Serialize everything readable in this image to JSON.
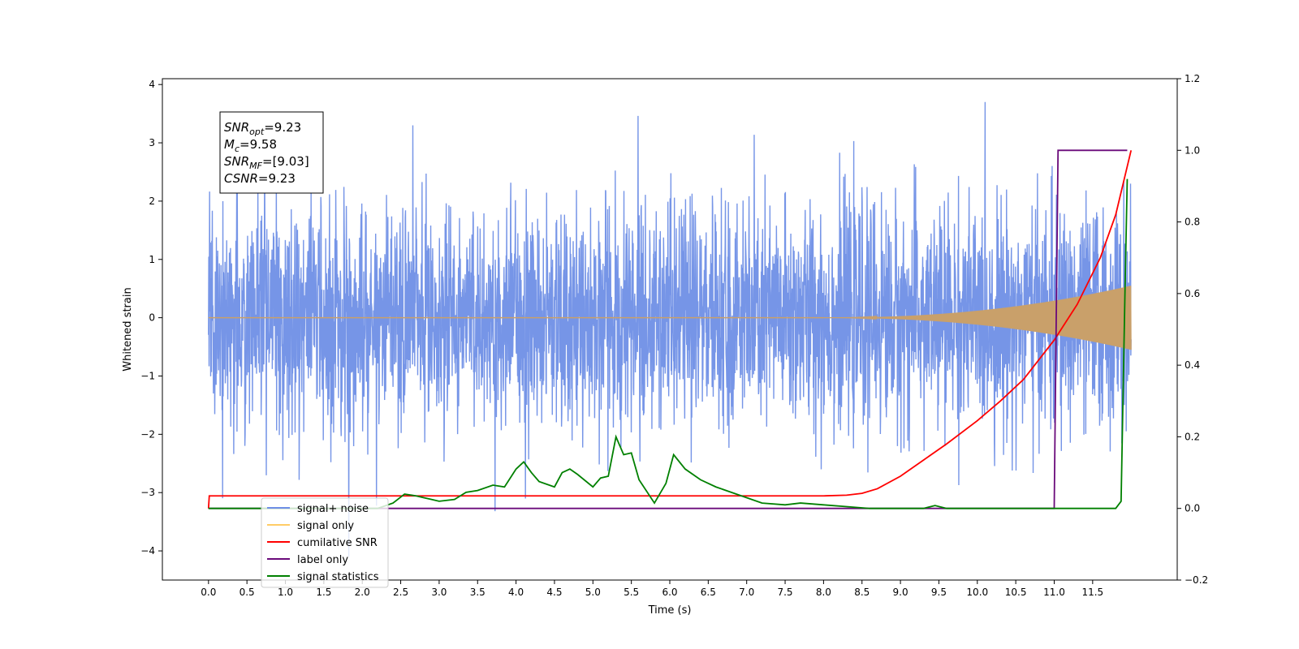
{
  "chart_data": {
    "type": "line",
    "xlabel": "Time (s)",
    "ylabel": "Whitened strain",
    "xlim": [
      -0.6,
      12.6
    ],
    "ylim": [
      -4.5,
      4.1
    ],
    "ylim_right": [
      -0.2,
      1.2
    ],
    "x_ticks": [
      "0.0",
      "0.5",
      "1.0",
      "1.5",
      "2.0",
      "2.5",
      "3.0",
      "3.5",
      "4.0",
      "4.5",
      "5.0",
      "5.5",
      "6.0",
      "6.5",
      "7.0",
      "7.5",
      "8.0",
      "8.5",
      "9.0",
      "9.5",
      "10.0",
      "10.5",
      "11.0",
      "11.5"
    ],
    "y_ticks": [
      "4",
      "3",
      "2",
      "1",
      "0",
      "−1",
      "−2",
      "−3",
      "−4"
    ],
    "y_ticks_right": [
      "1.2",
      "1.0",
      "0.8",
      "0.6",
      "0.4",
      "0.2",
      "0.0",
      "−0.2"
    ],
    "grid": false,
    "legend_position": "lower-left",
    "annotation": {
      "lines": [
        {
          "sym": "SNR",
          "sub": "opt",
          "val": "=9.23"
        },
        {
          "sym": "M",
          "sub": "c",
          "val": "=9.58"
        },
        {
          "sym": "SNR",
          "sub": "MF",
          "val": "=[9.03]"
        },
        {
          "sym": "CSNR",
          "sub": "",
          "val": "=9.23"
        }
      ]
    },
    "series": [
      {
        "name": "signal+ noise",
        "color": "#6f8fe6",
        "axis": "left",
        "kind": "noise",
        "sigma": 0.95,
        "t_start": 0.0,
        "t_end": 12.0
      },
      {
        "name": "signal only",
        "color": "#c9a06a",
        "legend_color": "#ffcc66",
        "axis": "left",
        "kind": "chirp",
        "t_start": 0.0,
        "t_end": 12.0,
        "peak_amplitude": 0.55
      },
      {
        "name": "cumilative SNR",
        "color": "#ff0000",
        "axis": "right",
        "x": [
          0.0,
          0.01,
          8.0,
          8.3,
          8.5,
          8.7,
          9.0,
          9.3,
          9.6,
          10.0,
          10.3,
          10.6,
          11.0,
          11.3,
          11.6,
          11.8,
          12.0
        ],
        "y": [
          0.0,
          0.035,
          0.035,
          0.037,
          0.042,
          0.055,
          0.09,
          0.135,
          0.18,
          0.245,
          0.3,
          0.36,
          0.47,
          0.57,
          0.7,
          0.82,
          1.0
        ]
      },
      {
        "name": "label only",
        "color": "#6a0a7a",
        "axis": "right",
        "x": [
          0.0,
          11.0,
          11.05,
          11.95
        ],
        "y": [
          0.0,
          0.0,
          1.0,
          1.0
        ]
      },
      {
        "name": "signal statistics",
        "color": "#008000",
        "axis": "right",
        "x": [
          0.0,
          2.2,
          2.4,
          2.55,
          2.7,
          2.8,
          2.9,
          3.0,
          3.2,
          3.35,
          3.5,
          3.7,
          3.85,
          4.0,
          4.1,
          4.2,
          4.3,
          4.5,
          4.6,
          4.7,
          4.8,
          5.0,
          5.1,
          5.2,
          5.3,
          5.4,
          5.5,
          5.6,
          5.8,
          5.95,
          6.05,
          6.2,
          6.4,
          6.6,
          6.8,
          7.0,
          7.2,
          7.5,
          7.7,
          8.0,
          8.3,
          8.6,
          9.0,
          9.3,
          9.45,
          9.6,
          9.8,
          11.0,
          11.8,
          11.87,
          11.92,
          11.95
        ],
        "y": [
          0.0,
          0.0,
          0.015,
          0.04,
          0.035,
          0.03,
          0.025,
          0.02,
          0.025,
          0.045,
          0.05,
          0.065,
          0.06,
          0.11,
          0.13,
          0.1,
          0.075,
          0.06,
          0.1,
          0.11,
          0.095,
          0.06,
          0.085,
          0.09,
          0.2,
          0.15,
          0.155,
          0.08,
          0.015,
          0.07,
          0.15,
          0.11,
          0.08,
          0.06,
          0.045,
          0.03,
          0.015,
          0.01,
          0.015,
          0.01,
          0.005,
          0.0,
          0.0,
          0.0,
          0.008,
          0.0,
          0.0,
          0.0,
          0.0,
          0.02,
          0.6,
          0.92
        ]
      }
    ]
  }
}
